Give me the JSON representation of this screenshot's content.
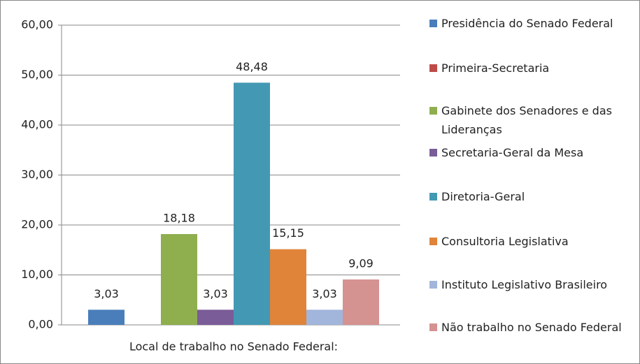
{
  "chart_data": {
    "type": "bar",
    "categories": [
      "Local de trabalho no Senado Federal:"
    ],
    "series": [
      {
        "name": "Presidência do Senado Federal",
        "color": "#4a7ebb",
        "values": [
          3.03
        ],
        "value_labels": [
          "3,03"
        ]
      },
      {
        "name": "Primeira-Secretaria",
        "color": "#be4b48",
        "values": [
          0
        ],
        "value_labels": [
          null
        ]
      },
      {
        "name": "Gabinete dos Senadores e das Lideranças",
        "color": "#8fae4e",
        "values": [
          18.18
        ],
        "value_labels": [
          "18,18"
        ]
      },
      {
        "name": "Secretaria-Geral da Mesa",
        "color": "#7a5c98",
        "values": [
          3.03
        ],
        "value_labels": [
          "3,03"
        ]
      },
      {
        "name": "Diretoria-Geral",
        "color": "#4399b3",
        "values": [
          48.48
        ],
        "value_labels": [
          "48,48"
        ]
      },
      {
        "name": "Consultoria Legislativa",
        "color": "#e0843a",
        "values": [
          15.15
        ],
        "value_labels": [
          "15,15"
        ]
      },
      {
        "name": "Instituto Legislativo Brasileiro",
        "color": "#a2b5db",
        "values": [
          3.03
        ],
        "value_labels": [
          "3,03"
        ]
      },
      {
        "name": "Não trabalho no Senado Federal",
        "color": "#d49291",
        "values": [
          9.09
        ],
        "value_labels": [
          "9,09"
        ]
      }
    ],
    "ylim": [
      0,
      60
    ],
    "yticks": [
      {
        "value": 0,
        "label": "0,00"
      },
      {
        "value": 10,
        "label": "10,00"
      },
      {
        "value": 20,
        "label": "20,00"
      },
      {
        "value": 30,
        "label": "30,00"
      },
      {
        "value": 40,
        "label": "40,00"
      },
      {
        "value": 50,
        "label": "50,00"
      },
      {
        "value": 60,
        "label": "60,00"
      }
    ],
    "grid": true,
    "legend": "right"
  }
}
